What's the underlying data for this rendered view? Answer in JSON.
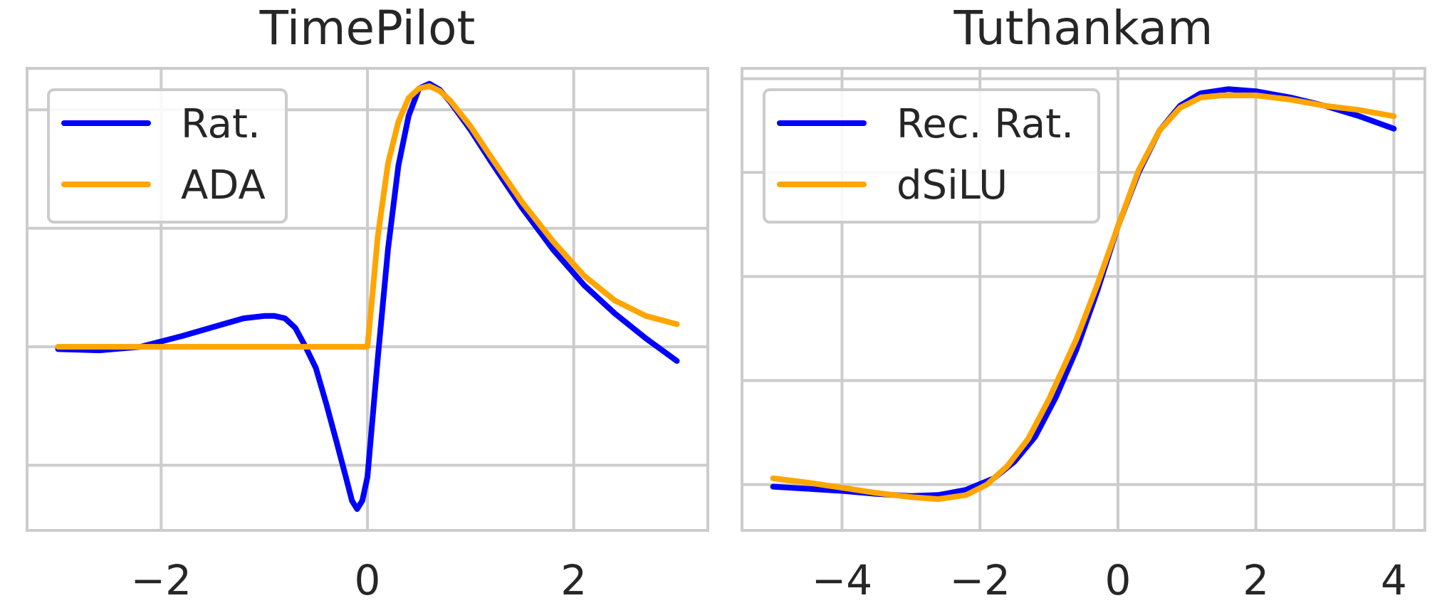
{
  "chart_data": [
    {
      "type": "line",
      "title": "TimePilot",
      "xlabel": "",
      "ylabel": "",
      "xlim": [
        -3.3,
        3.3
      ],
      "ylim": [
        -1.55,
        2.35
      ],
      "xticks": [
        -2,
        0,
        2
      ],
      "xtick_labels": [
        "−2",
        "0",
        "2"
      ],
      "ygrid": [
        -1.0,
        0.0,
        1.0,
        2.0
      ],
      "grid": true,
      "legend": {
        "position": "top-left",
        "entries": [
          "Rat.",
          "ADA"
        ]
      },
      "series": [
        {
          "name": "Rat.",
          "color": "#0000ff",
          "x": [
            -3.0,
            -2.6,
            -2.2,
            -1.8,
            -1.4,
            -1.2,
            -1.0,
            -0.9,
            -0.8,
            -0.7,
            -0.6,
            -0.5,
            -0.4,
            -0.3,
            -0.2,
            -0.15,
            -0.1,
            -0.05,
            0.0,
            0.1,
            0.2,
            0.3,
            0.4,
            0.5,
            0.6,
            0.7,
            0.8,
            1.0,
            1.2,
            1.5,
            1.8,
            2.1,
            2.4,
            2.7,
            3.0
          ],
          "y": [
            -0.02,
            -0.03,
            0.0,
            0.09,
            0.19,
            0.24,
            0.26,
            0.26,
            0.24,
            0.16,
            0.0,
            -0.18,
            -0.48,
            -0.8,
            -1.13,
            -1.3,
            -1.37,
            -1.3,
            -1.1,
            -0.1,
            0.83,
            1.53,
            1.95,
            2.18,
            2.22,
            2.17,
            2.07,
            1.83,
            1.56,
            1.17,
            0.82,
            0.52,
            0.28,
            0.07,
            -0.12
          ]
        },
        {
          "name": "ADA",
          "color": "#ffa500",
          "x": [
            -3.0,
            -2.0,
            -1.0,
            -0.5,
            0.0,
            0.05,
            0.1,
            0.2,
            0.3,
            0.4,
            0.5,
            0.6,
            0.7,
            0.8,
            1.0,
            1.2,
            1.5,
            1.8,
            2.1,
            2.4,
            2.7,
            3.0
          ],
          "y": [
            0.0,
            0.0,
            0.0,
            0.0,
            0.0,
            0.45,
            0.93,
            1.55,
            1.9,
            2.1,
            2.18,
            2.2,
            2.16,
            2.08,
            1.86,
            1.6,
            1.22,
            0.89,
            0.6,
            0.39,
            0.26,
            0.19
          ]
        }
      ]
    },
    {
      "type": "line",
      "title": "Tuthankam",
      "xlabel": "",
      "ylabel": "",
      "xlim": [
        -5.45,
        4.45
      ],
      "ylim": [
        -1.22,
        1.0
      ],
      "xticks": [
        -4,
        -2,
        0,
        2,
        4
      ],
      "xtick_labels": [
        "−4",
        "−2",
        "0",
        "2",
        "4"
      ],
      "ygrid": [
        -1.0,
        -0.5,
        0.0,
        0.5,
        0.95
      ],
      "grid": true,
      "legend": {
        "position": "top-left",
        "entries": [
          "Rec. Rat.",
          "dSiLU"
        ]
      },
      "series": [
        {
          "name": "Rec. Rat.",
          "color": "#0000ff",
          "x": [
            -5.0,
            -4.5,
            -4.0,
            -3.5,
            -3.0,
            -2.6,
            -2.2,
            -1.8,
            -1.5,
            -1.2,
            -0.9,
            -0.6,
            -0.3,
            0.0,
            0.3,
            0.6,
            0.9,
            1.2,
            1.6,
            2.0,
            2.5,
            3.0,
            3.5,
            4.0
          ],
          "y": [
            -1.01,
            -1.02,
            -1.03,
            -1.045,
            -1.055,
            -1.05,
            -1.025,
            -0.97,
            -0.89,
            -0.77,
            -0.58,
            -0.35,
            -0.07,
            0.24,
            0.5,
            0.7,
            0.82,
            0.88,
            0.9,
            0.89,
            0.86,
            0.82,
            0.77,
            0.71
          ]
        },
        {
          "name": "dSiLU",
          "color": "#ffa500",
          "x": [
            -5.0,
            -4.5,
            -4.0,
            -3.5,
            -3.0,
            -2.6,
            -2.2,
            -1.9,
            -1.6,
            -1.3,
            -1.0,
            -0.6,
            -0.3,
            0.0,
            0.3,
            0.6,
            0.9,
            1.2,
            1.5,
            2.0,
            2.5,
            3.0,
            3.5,
            4.0
          ],
          "y": [
            -0.97,
            -0.99,
            -1.015,
            -1.04,
            -1.06,
            -1.07,
            -1.05,
            -1.0,
            -0.91,
            -0.78,
            -0.59,
            -0.3,
            -0.04,
            0.24,
            0.51,
            0.7,
            0.81,
            0.86,
            0.87,
            0.87,
            0.85,
            0.82,
            0.8,
            0.77
          ]
        }
      ]
    }
  ]
}
